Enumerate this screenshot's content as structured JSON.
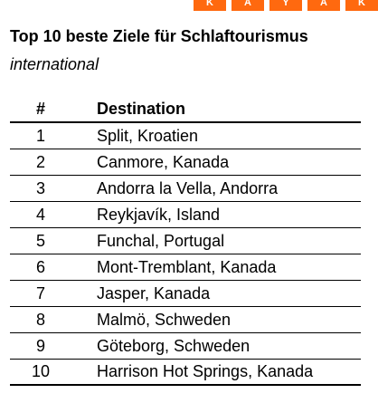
{
  "logo": {
    "letters": [
      "K",
      "A",
      "Y",
      "A",
      "K"
    ],
    "color": "#ff690f"
  },
  "title": "Top 10 beste Ziele für Schlaftourismus",
  "subtitle": "international",
  "table": {
    "headers": {
      "rank": "#",
      "destination": "Destination"
    },
    "rows": [
      {
        "rank": "1",
        "destination": "Split, Kroatien"
      },
      {
        "rank": "2",
        "destination": "Canmore, Kanada"
      },
      {
        "rank": "3",
        "destination": "Andorra la Vella, Andorra"
      },
      {
        "rank": "4",
        "destination": "Reykjavík, Island"
      },
      {
        "rank": "5",
        "destination": "Funchal, Portugal"
      },
      {
        "rank": "6",
        "destination": "Mont-Tremblant, Kanada"
      },
      {
        "rank": "7",
        "destination": "Jasper, Kanada"
      },
      {
        "rank": "8",
        "destination": "Malmö, Schweden"
      },
      {
        "rank": "9",
        "destination": "Göteborg, Schweden"
      },
      {
        "rank": "10",
        "destination": "Harrison Hot Springs, Kanada"
      }
    ]
  }
}
